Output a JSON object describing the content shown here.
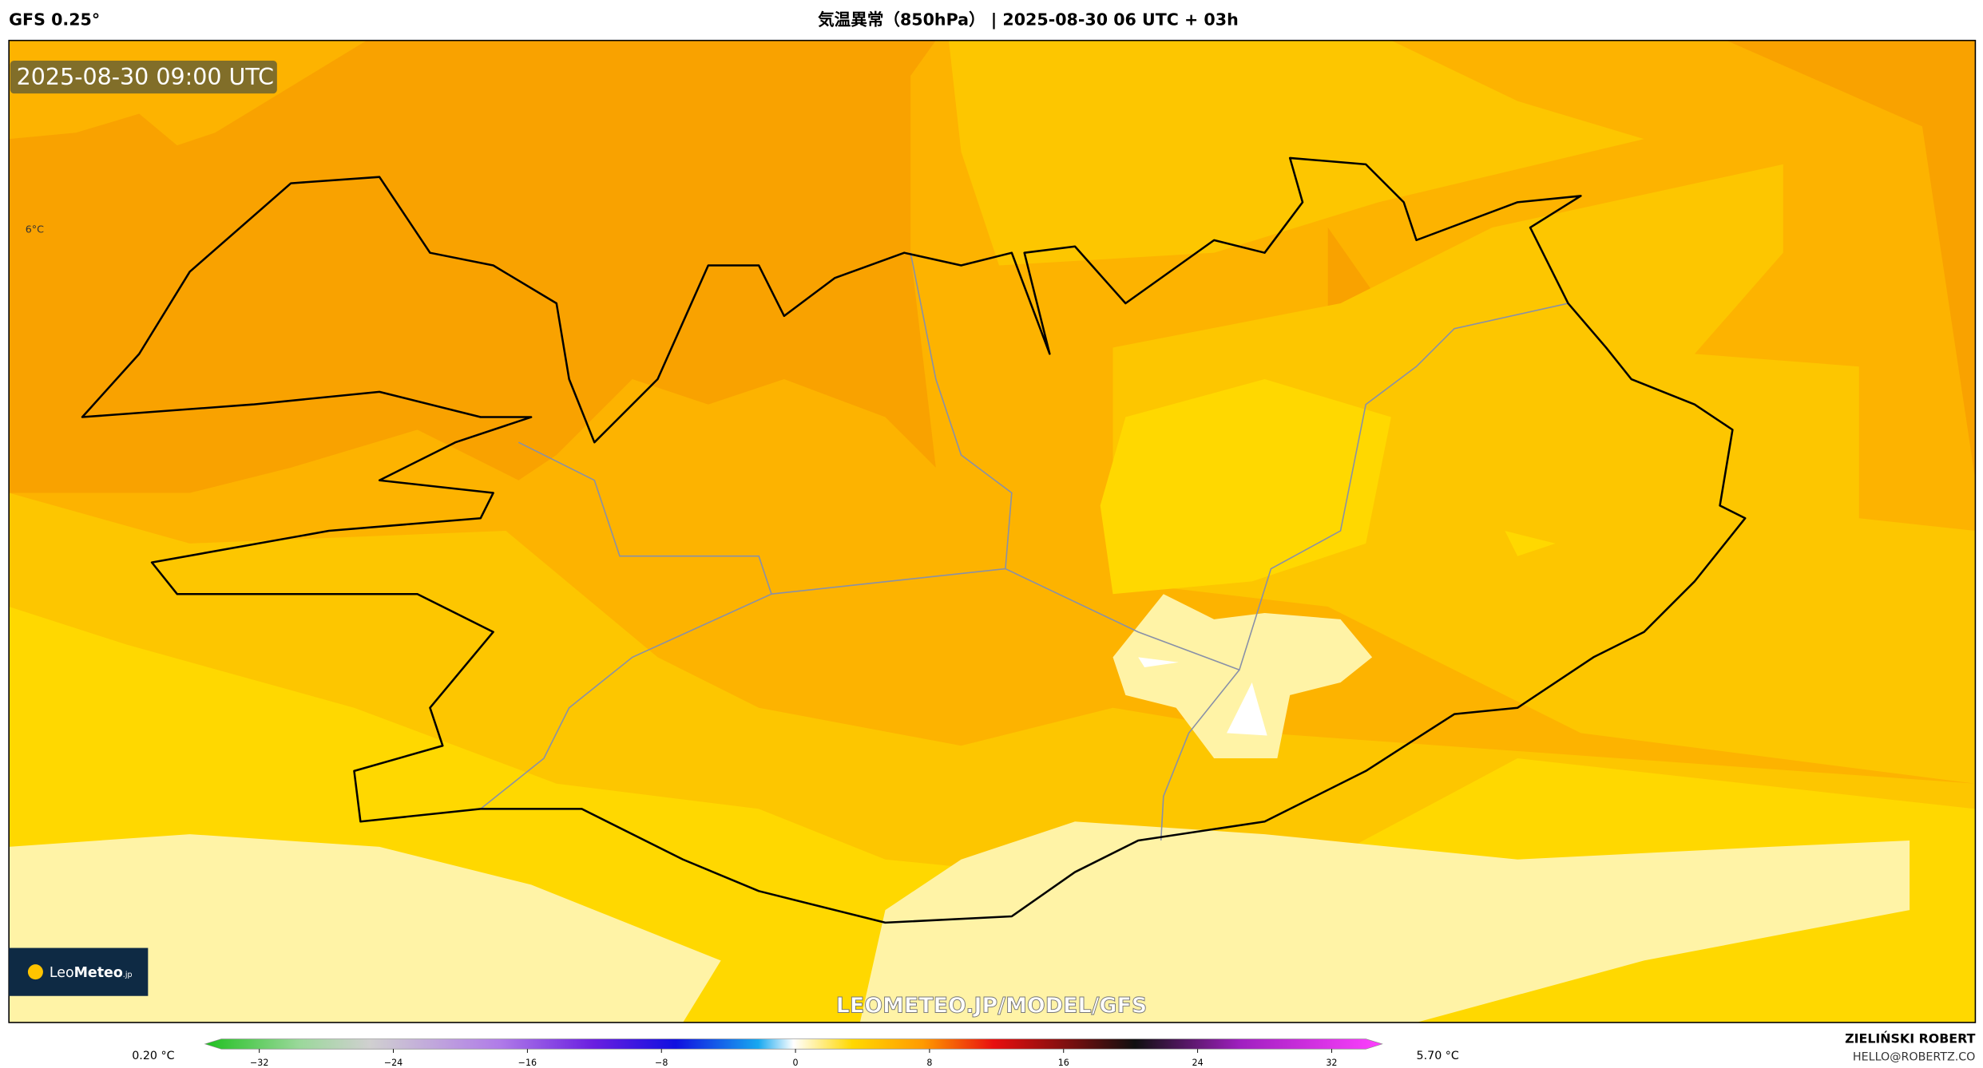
{
  "header": {
    "model": "GFS 0.25°",
    "title": "気温異常（850hPa） | 2025-08-30 06 UTC + 03h"
  },
  "map": {
    "timestamp": "2025-08-30 09:00 UTC",
    "contour_label": "6°C",
    "watermark": "LEOMETEO.JP/MODEL/GFS",
    "logo": {
      "leo": "Leo",
      "meteo": "Meteo",
      "suffix": ".jp"
    }
  },
  "colorbar": {
    "min_label": "0.20 °C",
    "max_label": "5.70 °C",
    "ticks": [
      "−32",
      "−24",
      "−16",
      "−8",
      "0",
      "8",
      "16",
      "24",
      "32"
    ]
  },
  "credit": {
    "author": "ZIELIŃSKI ROBERT",
    "email": "HELLO@ROBERTZ.CO"
  }
}
